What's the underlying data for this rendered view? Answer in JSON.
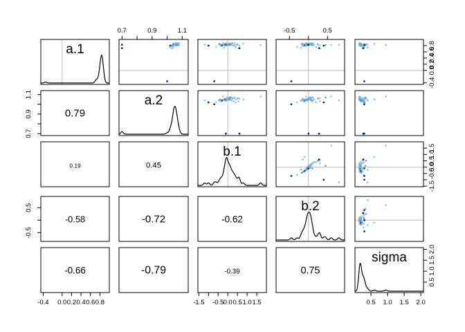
{
  "chart_data": {
    "type": "scatter",
    "kind": "pairs-matrix",
    "variables": [
      "a.1",
      "a.2",
      "b.1",
      "b.2",
      "sigma"
    ],
    "ranges": {
      "a.1": [
        -0.45,
        1.0
      ],
      "a.2": [
        0.68,
        1.14
      ],
      "b.1": [
        -1.55,
        2.0
      ],
      "b.2": [
        -0.85,
        0.95
      ],
      "sigma": [
        0.02,
        2.08
      ]
    },
    "ticks": {
      "a.1": [
        {
          "v": -0.4,
          "label": "-0.4"
        },
        {
          "v": 0.0,
          "label": "0.0"
        },
        {
          "v": 0.2,
          "label": "0.2"
        },
        {
          "v": 0.4,
          "label": "0.4"
        },
        {
          "v": 0.6,
          "label": "0.6"
        },
        {
          "v": 0.8,
          "label": "0.8"
        }
      ],
      "a.2": [
        {
          "v": 0.7,
          "label": "0.7"
        },
        {
          "v": 0.8,
          "label": ""
        },
        {
          "v": 0.9,
          "label": "0.9"
        },
        {
          "v": 1.0,
          "label": ""
        },
        {
          "v": 1.1,
          "label": "1.1"
        }
      ],
      "b.1": [
        {
          "v": -1.5,
          "label": "-1.5"
        },
        {
          "v": -1.0,
          "label": ""
        },
        {
          "v": -0.5,
          "label": "-0.5"
        },
        {
          "v": 0.0,
          "label": "0.0"
        },
        {
          "v": 0.5,
          "label": "0.5"
        },
        {
          "v": 1.0,
          "label": "1.0"
        },
        {
          "v": 1.5,
          "label": "1.5"
        }
      ],
      "b.2": [
        {
          "v": -0.5,
          "label": "-0.5"
        },
        {
          "v": 0.0,
          "label": ""
        },
        {
          "v": 0.5,
          "label": "0.5"
        }
      ],
      "sigma": [
        {
          "v": 0.5,
          "label": "0.5"
        },
        {
          "v": 1.0,
          "label": "1.0"
        },
        {
          "v": 1.5,
          "label": "1.5"
        },
        {
          "v": 2.0,
          "label": "2.0"
        }
      ]
    },
    "correlations": [
      {
        "row": 1,
        "col": 0,
        "value": "0.79",
        "size": 1.0
      },
      {
        "row": 2,
        "col": 0,
        "value": "0.19",
        "size": 0.55
      },
      {
        "row": 2,
        "col": 1,
        "value": "0.45",
        "size": 0.75
      },
      {
        "row": 3,
        "col": 0,
        "value": "-0.58",
        "size": 0.85
      },
      {
        "row": 3,
        "col": 1,
        "value": "-0.72",
        "size": 1.0
      },
      {
        "row": 3,
        "col": 2,
        "value": "-0.62",
        "size": 0.9
      },
      {
        "row": 4,
        "col": 0,
        "value": "-0.66",
        "size": 0.9
      },
      {
        "row": 4,
        "col": 1,
        "value": "-0.79",
        "size": 1.05
      },
      {
        "row": 4,
        "col": 2,
        "value": "-0.39",
        "size": 0.65
      },
      {
        "row": 4,
        "col": 3,
        "value": "0.75",
        "size": 0.95
      }
    ],
    "reference_lines": {
      "a.1": 0.0,
      "b.1": 0.0,
      "b.2": 0.0
    },
    "samples": [
      {
        "a.1": 0.82,
        "a.2": 1.05,
        "b.1": -0.05,
        "b.2": -0.02,
        "sigma": 0.15
      },
      {
        "a.1": 0.84,
        "a.2": 1.06,
        "b.1": 0.05,
        "b.2": 0.02,
        "sigma": 0.16
      },
      {
        "a.1": 0.8,
        "a.2": 1.04,
        "b.1": -0.1,
        "b.2": -0.05,
        "sigma": 0.17
      },
      {
        "a.1": 0.86,
        "a.2": 1.07,
        "b.1": 0.15,
        "b.2": 0.05,
        "sigma": 0.15
      },
      {
        "a.1": 0.83,
        "a.2": 1.05,
        "b.1": -0.2,
        "b.2": -0.08,
        "sigma": 0.18
      },
      {
        "a.1": 0.85,
        "a.2": 1.06,
        "b.1": 0.1,
        "b.2": 0.0,
        "sigma": 0.16
      },
      {
        "a.1": 0.81,
        "a.2": 1.04,
        "b.1": -0.3,
        "b.2": -0.1,
        "sigma": 0.19
      },
      {
        "a.1": 0.87,
        "a.2": 1.06,
        "b.1": 0.25,
        "b.2": 0.08,
        "sigma": 0.15
      },
      {
        "a.1": 0.84,
        "a.2": 1.05,
        "b.1": -0.15,
        "b.2": -0.04,
        "sigma": 0.17
      },
      {
        "a.1": 0.82,
        "a.2": 1.05,
        "b.1": 0.0,
        "b.2": -0.01,
        "sigma": 0.16
      },
      {
        "a.1": 0.86,
        "a.2": 1.07,
        "b.1": -0.05,
        "b.2": 0.03,
        "sigma": 0.18
      },
      {
        "a.1": 0.83,
        "a.2": 1.04,
        "b.1": 0.2,
        "b.2": 0.06,
        "sigma": 0.2
      },
      {
        "a.1": 0.85,
        "a.2": 1.05,
        "b.1": -0.4,
        "b.2": -0.15,
        "sigma": 0.17
      },
      {
        "a.1": 0.8,
        "a.2": 1.03,
        "b.1": 0.3,
        "b.2": 0.1,
        "sigma": 0.21
      },
      {
        "a.1": 0.88,
        "a.2": 1.08,
        "b.1": -0.25,
        "b.2": -0.06,
        "sigma": 0.16
      },
      {
        "a.1": 0.84,
        "a.2": 1.06,
        "b.1": 0.05,
        "b.2": 0.01,
        "sigma": 0.19
      },
      {
        "a.1": 0.82,
        "a.2": 1.04,
        "b.1": -0.08,
        "b.2": -0.03,
        "sigma": 0.22
      },
      {
        "a.1": 0.86,
        "a.2": 1.05,
        "b.1": 0.12,
        "b.2": 0.04,
        "sigma": 0.18
      },
      {
        "a.1": 0.79,
        "a.2": 1.03,
        "b.1": -0.35,
        "b.2": -0.12,
        "sigma": 0.23
      },
      {
        "a.1": 0.87,
        "a.2": 1.07,
        "b.1": 0.35,
        "b.2": 0.12,
        "sigma": 0.17
      },
      {
        "a.1": 0.83,
        "a.2": 1.06,
        "b.1": -0.02,
        "b.2": 0.0,
        "sigma": 0.15
      },
      {
        "a.1": 0.85,
        "a.2": 1.05,
        "b.1": 0.08,
        "b.2": 0.05,
        "sigma": 0.2
      },
      {
        "a.1": 0.81,
        "a.2": 1.04,
        "b.1": -0.18,
        "b.2": -0.07,
        "sigma": 0.24
      },
      {
        "a.1": 0.88,
        "a.2": 1.06,
        "b.1": 0.22,
        "b.2": 0.09,
        "sigma": 0.16
      },
      {
        "a.1": 0.84,
        "a.2": 1.05,
        "b.1": -0.12,
        "b.2": -0.02,
        "sigma": 0.18
      },
      {
        "a.1": 0.86,
        "a.2": 1.06,
        "b.1": 0.02,
        "b.2": 0.03,
        "sigma": 0.19
      },
      {
        "a.1": 0.82,
        "a.2": 1.05,
        "b.1": 0.4,
        "b.2": 0.15,
        "sigma": 0.22
      },
      {
        "a.1": 0.85,
        "a.2": 1.04,
        "b.1": -0.45,
        "b.2": -0.18,
        "sigma": 0.21
      },
      {
        "a.1": 0.83,
        "a.2": 1.07,
        "b.1": 0.18,
        "b.2": 0.07,
        "sigma": 0.17
      },
      {
        "a.1": 0.87,
        "a.2": 1.05,
        "b.1": -0.06,
        "b.2": -0.04,
        "sigma": 0.15
      },
      {
        "a.1": 0.8,
        "a.2": 1.02,
        "b.1": -1.0,
        "b.2": 0.4,
        "sigma": 0.3
      },
      {
        "a.1": 0.82,
        "a.2": 1.08,
        "b.1": 1.7,
        "b.2": 0.6,
        "sigma": 0.95
      },
      {
        "a.1": 0.76,
        "a.2": 1.02,
        "b.1": -0.6,
        "b.2": -0.3,
        "sigma": 0.28
      },
      {
        "a.1": 0.84,
        "a.2": 1.06,
        "b.1": 0.5,
        "b.2": 0.25,
        "sigma": 0.35
      },
      {
        "a.1": 0.86,
        "a.2": 1.05,
        "b.1": 0.8,
        "b.2": -0.1,
        "sigma": 0.6
      },
      {
        "a.1": 0.83,
        "a.2": 1.04,
        "b.1": -1.2,
        "b.2": 0.8,
        "sigma": 0.4
      },
      {
        "a.1": -0.35,
        "a.2": 1.0,
        "b.1": -0.7,
        "b.2": -0.45,
        "sigma": 0.3
      },
      {
        "a.1": 0.8,
        "a.2": 1.06,
        "b.1": 0.3,
        "b.2": 0.3,
        "sigma": 0.25
      },
      {
        "a.1": 0.74,
        "a.2": 1.04,
        "b.1": -0.2,
        "b.2": -0.2,
        "sigma": 0.4
      },
      {
        "a.1": 0.82,
        "a.2": 1.07,
        "b.1": 0.1,
        "b.2": 0.45,
        "sigma": 0.33
      },
      {
        "a.1": 0.85,
        "a.2": 1.05,
        "b.1": -0.05,
        "b.2": 0.05,
        "sigma": 0.3
      },
      {
        "a.1": 0.8,
        "a.2": 1.06,
        "b.1": 0.6,
        "b.2": -0.15,
        "sigma": 0.28
      },
      {
        "a.1": 0.83,
        "a.2": 0.7,
        "b.1": -0.1,
        "b.2": 0.0,
        "sigma": 0.3
      },
      {
        "a.1": 0.71,
        "a.2": 1.03,
        "b.1": 0.55,
        "b.2": 0.3,
        "sigma": 0.25
      },
      {
        "a.1": 0.75,
        "a.2": 1.02,
        "b.1": 0.4,
        "b.2": 0.2,
        "sigma": 0.29
      },
      {
        "a.1": 0.84,
        "a.2": 1.04,
        "b.1": -0.1,
        "b.2": 0.1,
        "sigma": 0.28
      },
      {
        "a.1": 0.72,
        "a.2": 0.7,
        "b.1": 0.6,
        "b.2": 0.28,
        "sigma": 0.27
      }
    ]
  }
}
